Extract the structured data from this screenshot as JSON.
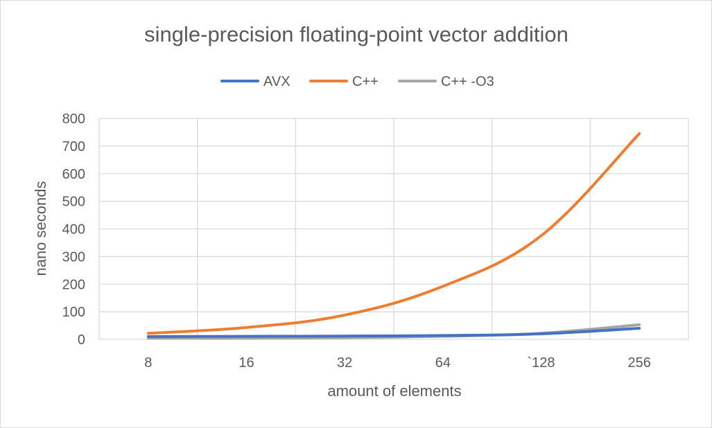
{
  "chart_data": {
    "type": "line",
    "title": "single-precision floating-point vector addition",
    "xlabel": "amount of elements",
    "ylabel": "nano seconds",
    "categories": [
      "8",
      "16",
      "32",
      "64",
      "`128",
      "256"
    ],
    "ylim": [
      0,
      800
    ],
    "yticks": [
      "0",
      "100",
      "200",
      "300",
      "400",
      "500",
      "600",
      "700",
      "800"
    ],
    "grid": "both",
    "legend_position": "top",
    "series": [
      {
        "name": "AVX",
        "color": "#4472c4",
        "values": [
          10,
          11,
          12,
          14,
          20,
          40
        ]
      },
      {
        "name": "C++",
        "color": "#ed7d31",
        "values": [
          22,
          43,
          88,
          192,
          375,
          745
        ]
      },
      {
        "name": "C++ -O3",
        "color": "#a5a5a5",
        "values": [
          4,
          4,
          6,
          11,
          22,
          53
        ]
      }
    ]
  }
}
